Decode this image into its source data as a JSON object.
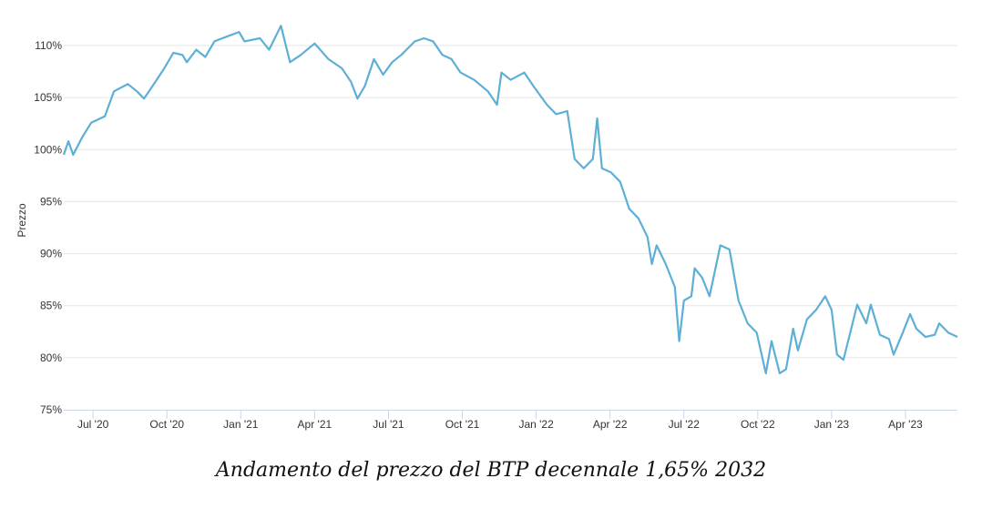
{
  "chart_data": {
    "type": "line",
    "title": "",
    "xlabel": "",
    "ylabel": "Prezzo",
    "x_unit": "months since Jan 2020",
    "xlim": [
      4.81,
      41.11
    ],
    "ylim": [
      75,
      110
    ],
    "grid": true,
    "yticks": [
      {
        "value": 110,
        "label": "110%"
      },
      {
        "value": 105,
        "label": "105%"
      },
      {
        "value": 100,
        "label": "100%"
      },
      {
        "value": 95,
        "label": "95%"
      },
      {
        "value": 90,
        "label": "90%"
      },
      {
        "value": 85,
        "label": "85%"
      },
      {
        "value": 80,
        "label": "80%"
      },
      {
        "value": 75,
        "label": "75%"
      }
    ],
    "xticks": [
      {
        "value": 6,
        "label": "Jul '20"
      },
      {
        "value": 9,
        "label": "Oct '20"
      },
      {
        "value": 12,
        "label": "Jan '21"
      },
      {
        "value": 15,
        "label": "Apr '21"
      },
      {
        "value": 18,
        "label": "Jul '21"
      },
      {
        "value": 21,
        "label": "Oct '21"
      },
      {
        "value": 24,
        "label": "Jan '22"
      },
      {
        "value": 27,
        "label": "Apr '22"
      },
      {
        "value": 30,
        "label": "Jul '22"
      },
      {
        "value": 33,
        "label": "Oct '22"
      },
      {
        "value": 36,
        "label": "Jan '23"
      },
      {
        "value": 39,
        "label": "Apr '23"
      }
    ],
    "series": [
      {
        "name": "BTP 1,65% 2032",
        "color": "#5eafd6",
        "points": [
          [
            4.81,
            99.5
          ],
          [
            5.0,
            100.8
          ],
          [
            5.19,
            99.5
          ],
          [
            5.56,
            101.2
          ],
          [
            5.93,
            102.6
          ],
          [
            6.48,
            103.2
          ],
          [
            6.85,
            105.6
          ],
          [
            7.41,
            106.3
          ],
          [
            7.78,
            105.6
          ],
          [
            8.07,
            104.9
          ],
          [
            8.33,
            105.8
          ],
          [
            8.89,
            107.8
          ],
          [
            9.26,
            109.3
          ],
          [
            9.63,
            109.1
          ],
          [
            9.81,
            108.4
          ],
          [
            10.19,
            109.6
          ],
          [
            10.56,
            108.9
          ],
          [
            10.93,
            110.4
          ],
          [
            11.48,
            110.9
          ],
          [
            11.93,
            111.3
          ],
          [
            12.15,
            110.4
          ],
          [
            12.78,
            110.7
          ],
          [
            13.15,
            109.6
          ],
          [
            13.63,
            111.9
          ],
          [
            14.0,
            108.4
          ],
          [
            14.44,
            109.1
          ],
          [
            15.0,
            110.2
          ],
          [
            15.56,
            108.7
          ],
          [
            16.11,
            107.8
          ],
          [
            16.48,
            106.5
          ],
          [
            16.74,
            104.9
          ],
          [
            17.04,
            106.1
          ],
          [
            17.41,
            108.7
          ],
          [
            17.78,
            107.2
          ],
          [
            18.15,
            108.4
          ],
          [
            18.52,
            109.1
          ],
          [
            19.07,
            110.4
          ],
          [
            19.44,
            110.7
          ],
          [
            19.81,
            110.4
          ],
          [
            20.19,
            109.1
          ],
          [
            20.56,
            108.7
          ],
          [
            20.93,
            107.4
          ],
          [
            21.48,
            106.7
          ],
          [
            22.04,
            105.6
          ],
          [
            22.41,
            104.3
          ],
          [
            22.59,
            107.4
          ],
          [
            22.96,
            106.7
          ],
          [
            23.52,
            107.4
          ],
          [
            23.89,
            106.1
          ],
          [
            24.44,
            104.3
          ],
          [
            24.81,
            103.4
          ],
          [
            25.26,
            103.7
          ],
          [
            25.56,
            99.1
          ],
          [
            25.93,
            98.2
          ],
          [
            26.3,
            99.1
          ],
          [
            26.48,
            103.0
          ],
          [
            26.67,
            98.2
          ],
          [
            27.04,
            97.8
          ],
          [
            27.41,
            96.9
          ],
          [
            27.78,
            94.3
          ],
          [
            28.15,
            93.4
          ],
          [
            28.52,
            91.6
          ],
          [
            28.7,
            89.0
          ],
          [
            28.89,
            90.8
          ],
          [
            29.26,
            89.0
          ],
          [
            29.63,
            86.8
          ],
          [
            29.81,
            81.6
          ],
          [
            30.0,
            85.5
          ],
          [
            30.3,
            85.9
          ],
          [
            30.44,
            88.6
          ],
          [
            30.74,
            87.7
          ],
          [
            31.04,
            85.9
          ],
          [
            31.48,
            90.8
          ],
          [
            31.85,
            90.4
          ],
          [
            32.22,
            85.5
          ],
          [
            32.59,
            83.3
          ],
          [
            32.96,
            82.4
          ],
          [
            33.33,
            78.5
          ],
          [
            33.56,
            81.6
          ],
          [
            33.89,
            78.5
          ],
          [
            34.15,
            78.9
          ],
          [
            34.44,
            82.8
          ],
          [
            34.63,
            80.7
          ],
          [
            35.0,
            83.7
          ],
          [
            35.37,
            84.6
          ],
          [
            35.74,
            85.9
          ],
          [
            36.0,
            84.6
          ],
          [
            36.22,
            80.3
          ],
          [
            36.48,
            79.8
          ],
          [
            36.85,
            83.3
          ],
          [
            37.04,
            85.1
          ],
          [
            37.41,
            83.3
          ],
          [
            37.59,
            85.1
          ],
          [
            37.96,
            82.2
          ],
          [
            38.33,
            81.8
          ],
          [
            38.52,
            80.3
          ],
          [
            38.89,
            82.4
          ],
          [
            39.19,
            84.2
          ],
          [
            39.44,
            82.8
          ],
          [
            39.81,
            82.0
          ],
          [
            40.19,
            82.2
          ],
          [
            40.37,
            83.3
          ],
          [
            40.74,
            82.4
          ],
          [
            41.11,
            82.0
          ]
        ]
      }
    ]
  },
  "caption": "Andamento del prezzo del BTP decennale 1,65% 2032"
}
